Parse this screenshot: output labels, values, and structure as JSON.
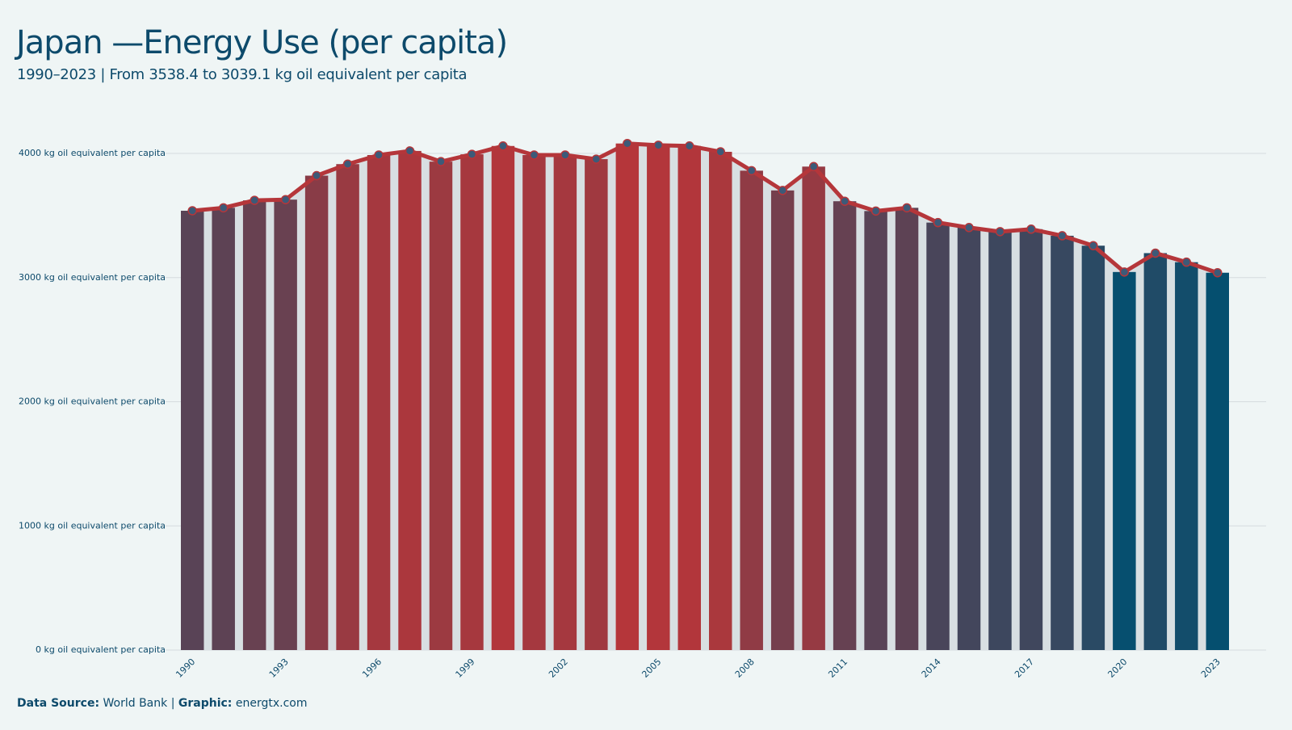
{
  "chart_data": {
    "type": "bar-line",
    "title": "Japan —Energy Use (per capita)",
    "subtitle": "1990–2023 | From 3538.4 to 3039.1 kg oil equivalent per capita",
    "x": [
      1990,
      1991,
      1992,
      1993,
      1994,
      1995,
      1996,
      1997,
      1998,
      1999,
      2000,
      2001,
      2002,
      2003,
      2004,
      2005,
      2006,
      2007,
      2008,
      2009,
      2010,
      2011,
      2012,
      2013,
      2014,
      2015,
      2016,
      2017,
      2018,
      2019,
      2020,
      2021,
      2022,
      2023
    ],
    "values": [
      3538.4,
      3562,
      3622,
      3628,
      3821,
      3914,
      3987,
      4020,
      3934,
      3993,
      4060,
      3987,
      3987,
      3954,
      4080,
      4066,
      4060,
      4013,
      3861,
      3702,
      3894,
      3615,
      3536,
      3562,
      3443,
      3403,
      3370,
      3390,
      3337,
      3257,
      3045,
      3197,
      3124,
      3039.1
    ],
    "xlim": [
      1989.5,
      2023.5
    ],
    "xticks": [
      1990,
      1993,
      1996,
      1999,
      2002,
      2005,
      2008,
      2011,
      2014,
      2017,
      2020,
      2023
    ],
    "ylim": [
      0,
      4000
    ],
    "yticks": [
      {
        "value": 0,
        "label": "0 kg oil equivalent per capita"
      },
      {
        "value": 1000,
        "label": "1000 kg oil equivalent per capita"
      },
      {
        "value": 2000,
        "label": "2000 kg oil equivalent per capita"
      },
      {
        "value": 3000,
        "label": "3000 kg oil equivalent per capita"
      },
      {
        "value": 4000,
        "label": "4000 kg oil equivalent per capita"
      }
    ],
    "grid": true,
    "bar_color_low": "#054f6f",
    "bar_color_high": "#b5363a",
    "line_color": "#b5363a",
    "marker_color": "#3d5a78",
    "area_color": "#d8dfe2",
    "source": [
      {
        "label": "Data Source:",
        "text": "World Bank"
      },
      {
        "label": "Graphic:",
        "text": "energtx.com"
      }
    ],
    "source_separator": "|"
  }
}
